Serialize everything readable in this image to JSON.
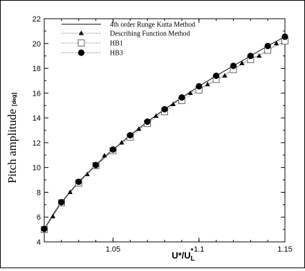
{
  "chart_data": {
    "type": "line",
    "xlabel_main": "U*/U",
    "xlabel_sub": "L",
    "xlabel_sup": "*",
    "ylabel_main": "Pitch amplitude",
    "ylabel_unit": "[deg]",
    "xlim": [
      1.01,
      1.15
    ],
    "ylim": [
      4,
      22
    ],
    "x_ticks": [
      "1.05",
      "1.1",
      "1.15"
    ],
    "y_ticks": [
      "4",
      "6",
      "8",
      "10",
      "12",
      "14",
      "16",
      "18",
      "20",
      "22"
    ],
    "grid": false,
    "legend_position": "top-left",
    "series": [
      {
        "name": "4th order Runge Kutta Method",
        "marker": "none",
        "x": [
          1.01,
          1.015,
          1.02,
          1.03,
          1.04,
          1.05,
          1.06,
          1.07,
          1.08,
          1.09,
          1.1,
          1.11,
          1.12,
          1.13,
          1.14,
          1.15
        ],
        "y": [
          5.0,
          6.2,
          7.2,
          8.85,
          10.2,
          11.45,
          12.6,
          13.7,
          14.7,
          15.65,
          16.55,
          17.4,
          18.2,
          19.0,
          19.8,
          20.55
        ]
      },
      {
        "name": "Describing Function Method",
        "marker": "triangle",
        "x": [
          1.01,
          1.015,
          1.02,
          1.025,
          1.03,
          1.035,
          1.04,
          1.045,
          1.05,
          1.055,
          1.06,
          1.065,
          1.07,
          1.075,
          1.08,
          1.085,
          1.09,
          1.095,
          1.1,
          1.105,
          1.11,
          1.115,
          1.12,
          1.125,
          1.13,
          1.135,
          1.14,
          1.145,
          1.15
        ],
        "y": [
          5.0,
          6.05,
          7.15,
          8.0,
          8.85,
          9.45,
          10.2,
          10.95,
          11.45,
          12.0,
          12.55,
          13.1,
          13.65,
          14.15,
          14.65,
          15.1,
          15.55,
          16.0,
          16.35,
          16.7,
          17.05,
          17.4,
          17.95,
          18.4,
          18.8,
          19.0,
          19.4,
          20.0,
          20.35
        ]
      },
      {
        "name": "HB1",
        "marker": "square-open",
        "x": [
          1.01,
          1.02,
          1.03,
          1.04,
          1.05,
          1.06,
          1.07,
          1.08,
          1.09,
          1.1,
          1.11,
          1.12,
          1.13,
          1.14,
          1.15
        ],
        "y": [
          5.0,
          7.15,
          8.75,
          10.15,
          11.35,
          12.45,
          13.55,
          14.5,
          15.4,
          16.25,
          17.1,
          17.9,
          18.7,
          19.45,
          20.2
        ]
      },
      {
        "name": "HB3",
        "marker": "circle-filled",
        "x": [
          1.01,
          1.02,
          1.03,
          1.04,
          1.05,
          1.06,
          1.07,
          1.08,
          1.09,
          1.1,
          1.11,
          1.12,
          1.13,
          1.14,
          1.15
        ],
        "y": [
          5.05,
          7.2,
          8.85,
          10.2,
          11.45,
          12.6,
          13.7,
          14.7,
          15.65,
          16.55,
          17.4,
          18.2,
          19.0,
          19.8,
          20.55
        ]
      }
    ]
  }
}
